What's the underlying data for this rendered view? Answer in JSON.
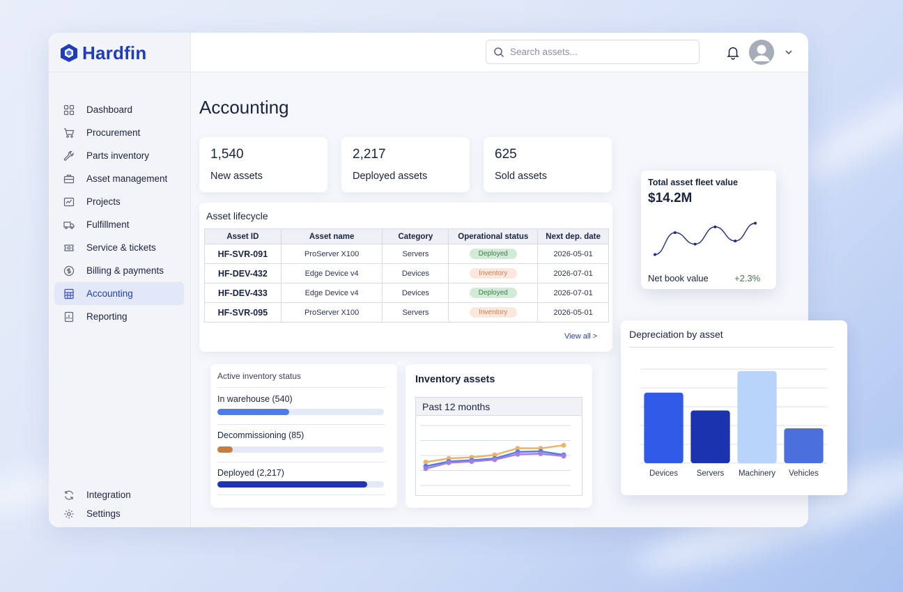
{
  "app": {
    "name": "Hardfin"
  },
  "colors": {
    "brand": "#1f3cc0",
    "positive": "#3d7a4a"
  },
  "sidebar": {
    "items": [
      {
        "label": "Dashboard",
        "icon": "grid-icon"
      },
      {
        "label": "Procurement",
        "icon": "cart-icon"
      },
      {
        "label": "Parts inventory",
        "icon": "wrench-icon"
      },
      {
        "label": "Asset management",
        "icon": "briefcase-icon"
      },
      {
        "label": "Projects",
        "icon": "projects-icon"
      },
      {
        "label": "Fulfillment",
        "icon": "truck-icon"
      },
      {
        "label": "Service & tickets",
        "icon": "ticket-icon"
      },
      {
        "label": "Billing & payments",
        "icon": "dollar-icon"
      },
      {
        "label": "Accounting",
        "icon": "calculator-icon",
        "active": true
      },
      {
        "label": "Reporting",
        "icon": "report-icon"
      }
    ],
    "bottom_items": [
      {
        "label": "Integration",
        "icon": "sync-icon"
      },
      {
        "label": "Settings",
        "icon": "gear-icon"
      }
    ]
  },
  "header": {
    "search_placeholder": "Search assets..."
  },
  "page": {
    "title": "Accounting"
  },
  "stats": [
    {
      "value": "1,540",
      "label": "New assets"
    },
    {
      "value": "2,217",
      "label": "Deployed assets"
    },
    {
      "value": "625",
      "label": "Sold assets"
    }
  ],
  "lifecycle": {
    "title": "Asset lifecycle",
    "columns": [
      "Asset ID",
      "Asset name",
      "Category",
      "Operational status",
      "Next dep. date"
    ],
    "rows": [
      {
        "id": "HF-SVR-091",
        "name": "ProServer X100",
        "category": "Servers",
        "status": "Deployed",
        "date": "2026-05-01"
      },
      {
        "id": "HF-DEV-432",
        "name": "Edge Device v4",
        "category": "Devices",
        "status": "Inventory",
        "date": "2026-07-01"
      },
      {
        "id": "HF-DEV-433",
        "name": "Edge Device v4",
        "category": "Devices",
        "status": "Deployed",
        "date": "2026-07-01"
      },
      {
        "id": "HF-SVR-095",
        "name": "ProServer X100",
        "category": "Servers",
        "status": "Inventory",
        "date": "2026-05-01"
      }
    ],
    "view_all": "View all >"
  },
  "inventory_status": {
    "title": "Active inventory status",
    "items": [
      {
        "label": "In warehouse (540)",
        "fraction": 0.43,
        "color": "#4f7de8"
      },
      {
        "label": "Decommissioning (85)",
        "fraction": 0.09,
        "color": "#c97d3c"
      },
      {
        "label": "Deployed (2,217)",
        "fraction": 0.9,
        "color": "#1f35b5"
      }
    ]
  },
  "inventory_assets": {
    "title": "Inventory assets",
    "period": "Past 12 months"
  },
  "fleet_value": {
    "title": "Total asset fleet value",
    "value": "$14.2M",
    "net_book_label": "Net book value",
    "change": "+2.3%"
  },
  "depreciation": {
    "title": "Depreciation by asset"
  },
  "chart_data": [
    {
      "type": "line",
      "name": "inventory-assets",
      "x": [
        1,
        2,
        3,
        4,
        5,
        6,
        7
      ],
      "series": [
        {
          "values": [
            39,
            45,
            47,
            51,
            62,
            62,
            67
          ],
          "color": "#e9b56b"
        },
        {
          "values": [
            32,
            40,
            42,
            45,
            56,
            57,
            51
          ],
          "color": "#4f7de8"
        },
        {
          "values": [
            28,
            38,
            40,
            43,
            52,
            53,
            49
          ],
          "color": "#a57de6"
        }
      ],
      "ylim": [
        0,
        100
      ],
      "grid": true
    },
    {
      "type": "line",
      "name": "fleet-value",
      "x": [
        1,
        2,
        3,
        4,
        5,
        6
      ],
      "series": [
        {
          "values": [
            10,
            52,
            30,
            63,
            36,
            70
          ],
          "color": "#1f2a8c"
        }
      ],
      "ylim": [
        0,
        80
      ],
      "grid": false
    },
    {
      "type": "bar",
      "name": "depreciation-by-asset",
      "categories": [
        "Devices",
        "Servers",
        "Machinery",
        "Vehicles"
      ],
      "values": [
        75,
        56,
        98,
        37
      ],
      "colors": [
        "#2f5be8",
        "#1c33b0",
        "#b8d4fb",
        "#4c6fde"
      ],
      "ylim": [
        0,
        100
      ],
      "grid": true
    }
  ]
}
